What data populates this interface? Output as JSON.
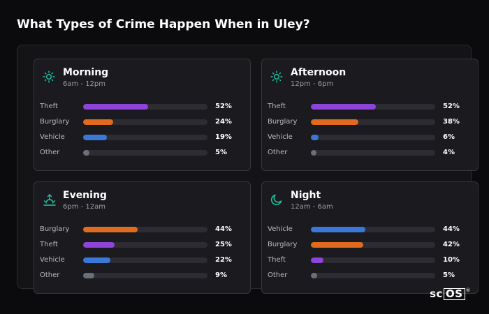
{
  "page": {
    "title": "What Types of Crime Happen When in Uley?"
  },
  "logo": {
    "prefix": "sc",
    "boxed": "OS",
    "mark": "®"
  },
  "colors": {
    "Theft": "#8e44d8",
    "Burglary": "#e06a1e",
    "Vehicle": "#3a78d8",
    "Other": "#6b6f7a",
    "icon": "#1fc8a6"
  },
  "chart_data": {
    "type": "bar",
    "title": "What Types of Crime Happen When in Uley?",
    "xlim": [
      0,
      100
    ],
    "unit": "%",
    "panels": [
      {
        "name": "Morning",
        "subtitle": "6am - 12pm",
        "icon": "sun-icon",
        "rows": [
          {
            "category": "Theft",
            "value": 52,
            "label": "52%"
          },
          {
            "category": "Burglary",
            "value": 24,
            "label": "24%"
          },
          {
            "category": "Vehicle",
            "value": 19,
            "label": "19%"
          },
          {
            "category": "Other",
            "value": 5,
            "label": "5%"
          }
        ]
      },
      {
        "name": "Afternoon",
        "subtitle": "12pm - 6pm",
        "icon": "sun-icon",
        "rows": [
          {
            "category": "Theft",
            "value": 52,
            "label": "52%"
          },
          {
            "category": "Burglary",
            "value": 38,
            "label": "38%"
          },
          {
            "category": "Vehicle",
            "value": 6,
            "label": "6%"
          },
          {
            "category": "Other",
            "value": 4,
            "label": "4%"
          }
        ]
      },
      {
        "name": "Evening",
        "subtitle": "6pm - 12am",
        "icon": "sunset-icon",
        "rows": [
          {
            "category": "Burglary",
            "value": 44,
            "label": "44%"
          },
          {
            "category": "Theft",
            "value": 25,
            "label": "25%"
          },
          {
            "category": "Vehicle",
            "value": 22,
            "label": "22%"
          },
          {
            "category": "Other",
            "value": 9,
            "label": "9%"
          }
        ]
      },
      {
        "name": "Night",
        "subtitle": "12am - 6am",
        "icon": "moon-icon",
        "rows": [
          {
            "category": "Vehicle",
            "value": 44,
            "label": "44%"
          },
          {
            "category": "Burglary",
            "value": 42,
            "label": "42%"
          },
          {
            "category": "Theft",
            "value": 10,
            "label": "10%"
          },
          {
            "category": "Other",
            "value": 5,
            "label": "5%"
          }
        ]
      }
    ]
  }
}
